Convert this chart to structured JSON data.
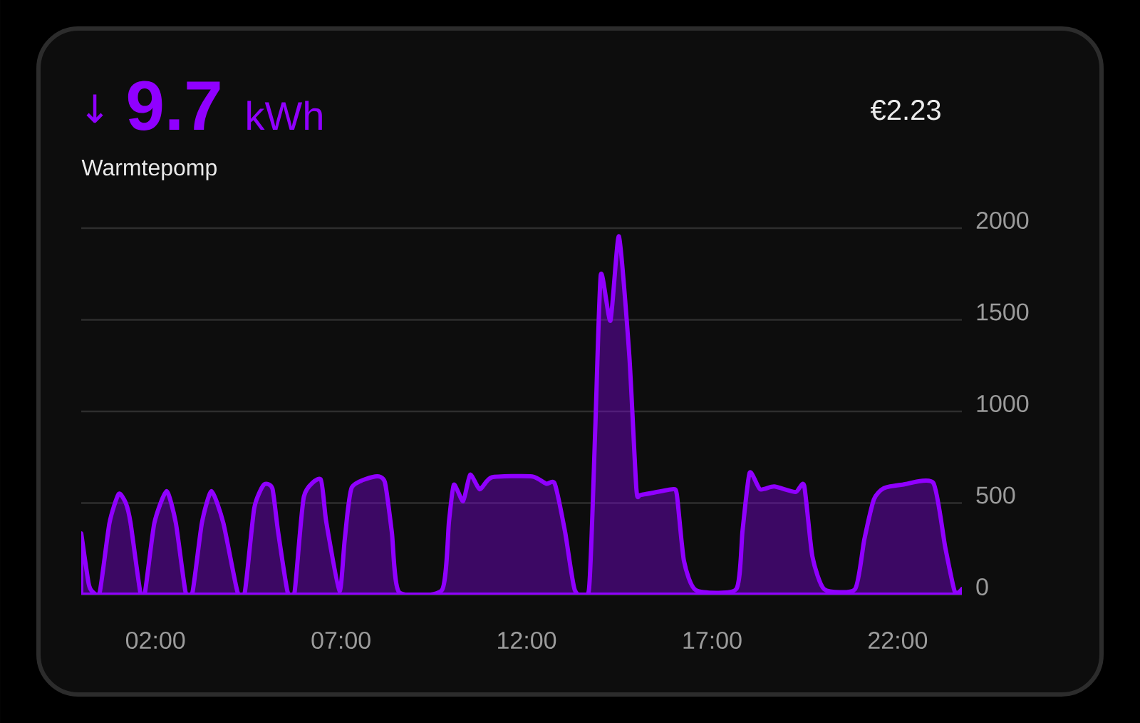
{
  "chart_data": {
    "type": "area",
    "title": "9.7",
    "subtitle": "Warmtepomp",
    "annotations": [
      "↓",
      "kWh",
      "€2.23"
    ],
    "x": [
      0,
      0.2,
      0.31,
      0.5,
      0.76,
      1.01,
      1.2,
      1.33,
      1.59,
      1.72,
      1.97,
      2.3,
      2.55,
      2.81,
      3.0,
      3.25,
      3.51,
      3.83,
      4.21,
      4.41,
      4.66,
      4.92,
      5.15,
      5.3,
      5.56,
      5.75,
      6.0,
      6.45,
      6.6,
      6.96,
      7.1,
      7.29,
      7.92,
      8.18,
      8.37,
      8.56,
      9.72,
      9.91,
      10.04,
      10.29,
      10.48,
      10.74,
      11.06,
      12.15,
      12.53,
      12.76,
      13.04,
      13.3,
      13.68,
      13.85,
      14.0,
      14.26,
      14.49,
      14.77,
      14.96,
      15.09,
      15.92,
      16.05,
      16.24,
      16.56,
      17.65,
      17.82,
      18.01,
      18.29,
      18.67,
      19.25,
      19.48,
      19.7,
      20.02,
      20.85,
      21.1,
      21.36,
      21.62,
      22.13,
      22.96,
      23.28,
      23.54,
      23.73
    ],
    "series": [
      {
        "color": "#9000ff",
        "values": [
          335,
          60,
          15,
          15,
          390,
          550,
          500,
          390,
          15,
          15,
          390,
          565,
          390,
          15,
          15,
          390,
          565,
          390,
          15,
          15,
          470,
          600,
          580,
          350,
          15,
          15,
          535,
          630,
          400,
          20,
          300,
          585,
          645,
          615,
          340,
          15,
          25,
          400,
          600,
          510,
          655,
          575,
          640,
          645,
          605,
          605,
          340,
          25,
          25,
          900,
          1745,
          1495,
          1955,
          1300,
          575,
          545,
          575,
          545,
          185,
          25,
          30,
          350,
          665,
          575,
          590,
          560,
          595,
          210,
          30,
          30,
          300,
          520,
          580,
          600,
          610,
          260,
          15,
          30
        ]
      }
    ],
    "xlim": [
      0,
      23.73
    ],
    "ylim": [
      0,
      2000
    ],
    "xticks": [
      {
        "value": 2,
        "label": "02:00"
      },
      {
        "value": 7,
        "label": "07:00"
      },
      {
        "value": 12,
        "label": "12:00"
      },
      {
        "value": 17,
        "label": "17:00"
      },
      {
        "value": 22,
        "label": "22:00"
      }
    ],
    "yticks": [
      0,
      500,
      1000,
      1500,
      2000
    ],
    "grid": "y"
  }
}
